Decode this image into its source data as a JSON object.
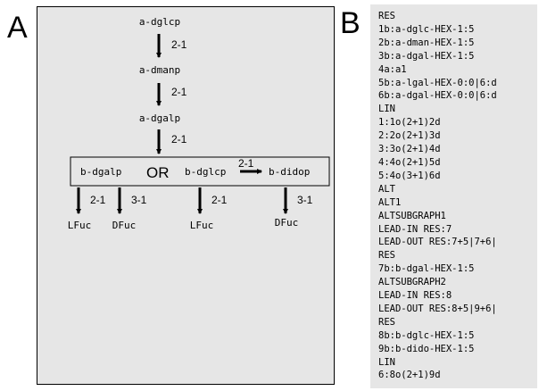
{
  "panel_a": {
    "letter": "A",
    "chain": [
      {
        "residue": "a-dglcp",
        "link": "2-1"
      },
      {
        "residue": "a-dmanp",
        "link": "2-1"
      },
      {
        "residue": "a-dgalp",
        "link": "2-1"
      }
    ],
    "alt_box": {
      "left_residue": "b-dgalp",
      "or_label": "OR",
      "mid_residue": "b-dglcp",
      "mid_link": "2-1",
      "right_residue": "b-didop"
    },
    "branches": [
      {
        "link": "2-1",
        "target": "LFuc"
      },
      {
        "link": "3-1",
        "target": "DFuc"
      },
      {
        "link": "2-1",
        "target": "LFuc"
      },
      {
        "link": "3-1",
        "target": "DFuc"
      }
    ]
  },
  "panel_b": {
    "letter": "B",
    "lines": [
      "RES",
      "1b:a-dglc-HEX-1:5",
      "2b:a-dman-HEX-1:5",
      "3b:a-dgal-HEX-1:5",
      "4a:a1",
      "5b:a-lgal-HEX-0:0|6:d",
      "6b:a-dgal-HEX-0:0|6:d",
      "LIN",
      "1:1o(2+1)2d",
      "2:2o(2+1)3d",
      "3:3o(2+1)4d",
      "4:4o(2+1)5d",
      "5:4o(3+1)6d",
      "ALT",
      "ALT1",
      "ALTSUBGRAPH1",
      "LEAD-IN RES:7",
      "LEAD-OUT RES:7+5|7+6|",
      "RES",
      "7b:b-dgal-HEX-1:5",
      "ALTSUBGRAPH2",
      "LEAD-IN RES:8",
      "LEAD-OUT RES:8+5|9+6|",
      "RES",
      "8b:b-dglc-HEX-1:5",
      "9b:b-dido-HEX-1:5",
      "LIN",
      "6:8o(2+1)9d"
    ]
  }
}
